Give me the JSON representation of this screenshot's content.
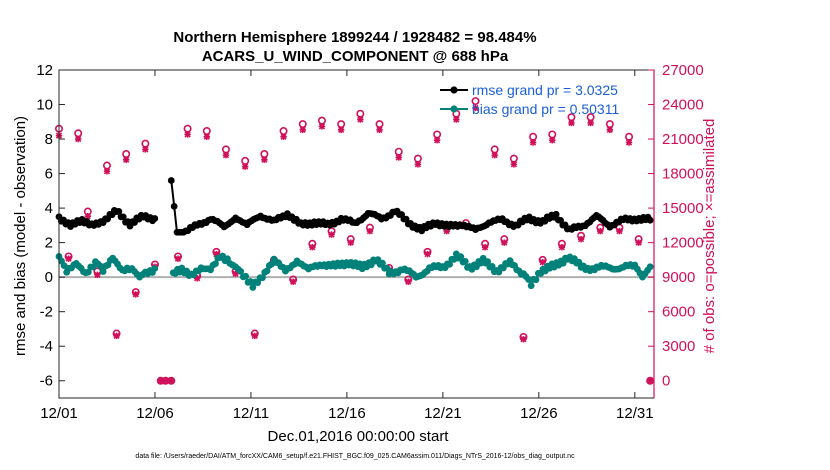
{
  "chart_data": {
    "type": "line",
    "title": "Northern Hemisphere 1899244 / 1928482 = 98.484%",
    "subtitle": "ACARS_U_WIND_COMPONENT @ 688 hPa",
    "xlabel": "Dec.01,2016 00:00:00 start",
    "ylabel_left": "rmse and bias (model - observation)",
    "ylabel_right": "# of obs: o=possible; ×=assimilated",
    "footer": "data file: /Users/raeder/DAI/ATM_forcXX/CAM6_setup/f.e21.FHIST_BGC.f09_025.CAM6assim.011/Diags_NTrS_2016-12/obs_diag_output.nc",
    "x_ticks": [
      "12/01",
      "12/06",
      "12/11",
      "12/16",
      "12/21",
      "12/26",
      "12/31"
    ],
    "x_tick_days": [
      1,
      6,
      11,
      16,
      21,
      26,
      31
    ],
    "xlim_days": [
      1,
      32
    ],
    "ylim_left": [
      -7,
      12
    ],
    "yticks_left": [
      "12",
      "10",
      "8",
      "6",
      "4",
      "2",
      "0",
      "-2",
      "-4",
      "-6"
    ],
    "ylim_right": [
      -1500,
      27000
    ],
    "yticks_right": [
      "27000",
      "24000",
      "21000",
      "18000",
      "15000",
      "12000",
      "9000",
      "6000",
      "3000",
      "0"
    ],
    "zero_line": 0,
    "legend": [
      "rmse grand pr = 3.0325",
      "bias grand pr = 0.50311"
    ],
    "colors": {
      "rmse": "#000000",
      "bias": "#00827a",
      "obs": "#d0105a",
      "zero": "#b0b0b0",
      "legend_text": "#1a5fd6"
    },
    "rmse_nodes": [
      {
        "d": 1.0,
        "v": 3.5
      },
      {
        "d": 1.6,
        "v": 3.0
      },
      {
        "d": 2.2,
        "v": 3.2
      },
      {
        "d": 2.7,
        "v": 3.0
      },
      {
        "d": 3.3,
        "v": 3.3
      },
      {
        "d": 4.0,
        "v": 3.8
      },
      {
        "d": 4.7,
        "v": 3.1
      },
      {
        "d": 5.4,
        "v": 3.5
      },
      {
        "d": 5.99,
        "v": 3.4
      },
      {
        "d": 6.7,
        "v": null
      },
      {
        "d": 6.85,
        "v": 5.6
      },
      {
        "d": 7.15,
        "v": 2.6
      },
      {
        "d": 7.6,
        "v": 2.6
      },
      {
        "d": 8.2,
        "v": 3.0
      },
      {
        "d": 8.9,
        "v": 3.4
      },
      {
        "d": 9.6,
        "v": 2.9
      },
      {
        "d": 10.2,
        "v": 3.5
      },
      {
        "d": 10.8,
        "v": 3.0
      },
      {
        "d": 11.5,
        "v": 3.6
      },
      {
        "d": 12.2,
        "v": 3.2
      },
      {
        "d": 12.9,
        "v": 3.7
      },
      {
        "d": 13.6,
        "v": 3.0
      },
      {
        "d": 14.3,
        "v": 3.2
      },
      {
        "d": 15.0,
        "v": 3.0
      },
      {
        "d": 15.7,
        "v": 3.4
      },
      {
        "d": 16.4,
        "v": 3.1
      },
      {
        "d": 17.1,
        "v": 3.7
      },
      {
        "d": 17.8,
        "v": 3.4
      },
      {
        "d": 18.5,
        "v": 3.8
      },
      {
        "d": 19.2,
        "v": 3.2
      },
      {
        "d": 19.9,
        "v": 2.7
      },
      {
        "d": 20.6,
        "v": 3.2
      },
      {
        "d": 21.3,
        "v": 2.9
      },
      {
        "d": 22.0,
        "v": 3.1
      },
      {
        "d": 22.7,
        "v": 2.7
      },
      {
        "d": 23.4,
        "v": 3.2
      },
      {
        "d": 24.1,
        "v": 3.3
      },
      {
        "d": 24.8,
        "v": 3.0
      },
      {
        "d": 25.5,
        "v": 3.4
      },
      {
        "d": 26.2,
        "v": 3.2
      },
      {
        "d": 26.9,
        "v": 3.6
      },
      {
        "d": 27.6,
        "v": 2.7
      },
      {
        "d": 28.3,
        "v": 3.0
      },
      {
        "d": 29.0,
        "v": 3.5
      },
      {
        "d": 29.7,
        "v": 3.0
      },
      {
        "d": 30.4,
        "v": 3.3
      },
      {
        "d": 31.1,
        "v": 3.4
      },
      {
        "d": 31.8,
        "v": 3.3
      }
    ],
    "bias_nodes": [
      {
        "d": 1.0,
        "v": 1.2
      },
      {
        "d": 1.4,
        "v": 0.4
      },
      {
        "d": 1.9,
        "v": 0.9
      },
      {
        "d": 2.4,
        "v": 0.3
      },
      {
        "d": 2.9,
        "v": 0.9
      },
      {
        "d": 3.3,
        "v": 0.5
      },
      {
        "d": 3.8,
        "v": 1.2
      },
      {
        "d": 4.3,
        "v": 0.4
      },
      {
        "d": 4.8,
        "v": 0.5
      },
      {
        "d": 5.2,
        "v": 0.0
      },
      {
        "d": 5.5,
        "v": 0.3
      },
      {
        "d": 5.99,
        "v": 0.5
      },
      {
        "d": 6.6,
        "v": null
      },
      {
        "d": 6.95,
        "v": 0.1
      },
      {
        "d": 7.4,
        "v": 0.5
      },
      {
        "d": 7.9,
        "v": 0.2
      },
      {
        "d": 8.4,
        "v": 0.6
      },
      {
        "d": 8.9,
        "v": 0.5
      },
      {
        "d": 9.4,
        "v": 1.2
      },
      {
        "d": 9.9,
        "v": 0.8
      },
      {
        "d": 10.2,
        "v": 0.6
      },
      {
        "d": 10.6,
        "v": 0.2
      },
      {
        "d": 11.1,
        "v": -0.4
      },
      {
        "d": 11.6,
        "v": 0.1
      },
      {
        "d": 12.2,
        "v": 0.9
      },
      {
        "d": 12.8,
        "v": 0.4
      },
      {
        "d": 13.4,
        "v": 1.0
      },
      {
        "d": 14.0,
        "v": 0.4
      },
      {
        "d": 14.7,
        "v": 0.8
      },
      {
        "d": 15.4,
        "v": 0.6
      },
      {
        "d": 16.1,
        "v": 0.9
      },
      {
        "d": 16.8,
        "v": 0.5
      },
      {
        "d": 17.5,
        "v": 1.1
      },
      {
        "d": 18.2,
        "v": 0.2
      },
      {
        "d": 18.9,
        "v": 0.5
      },
      {
        "d": 19.6,
        "v": 0.0
      },
      {
        "d": 20.3,
        "v": 0.5
      },
      {
        "d": 21.0,
        "v": 0.6
      },
      {
        "d": 21.7,
        "v": 1.2
      },
      {
        "d": 22.4,
        "v": 0.6
      },
      {
        "d": 23.1,
        "v": 0.9
      },
      {
        "d": 23.8,
        "v": 0.4
      },
      {
        "d": 24.5,
        "v": 0.8
      },
      {
        "d": 25.2,
        "v": 0.2
      },
      {
        "d": 25.6,
        "v": -0.3
      },
      {
        "d": 26.1,
        "v": 0.4
      },
      {
        "d": 26.8,
        "v": 0.6
      },
      {
        "d": 27.5,
        "v": 1.2
      },
      {
        "d": 28.2,
        "v": 0.6
      },
      {
        "d": 28.9,
        "v": 0.5
      },
      {
        "d": 29.6,
        "v": 0.6
      },
      {
        "d": 30.3,
        "v": 0.5
      },
      {
        "d": 31.0,
        "v": 0.7
      },
      {
        "d": 31.4,
        "v": 0.0
      },
      {
        "d": 31.8,
        "v": 0.6
      }
    ],
    "obs_possible": [
      {
        "d": 1.0,
        "v": 21900
      },
      {
        "d": 1.5,
        "v": 10800
      },
      {
        "d": 2.0,
        "v": 21500
      },
      {
        "d": 2.5,
        "v": 14700
      },
      {
        "d": 3.0,
        "v": 9500
      },
      {
        "d": 3.5,
        "v": 18700
      },
      {
        "d": 4.0,
        "v": 4100
      },
      {
        "d": 4.5,
        "v": 19700
      },
      {
        "d": 5.0,
        "v": 7700
      },
      {
        "d": 5.5,
        "v": 20600
      },
      {
        "d": 6.0,
        "v": 10100
      },
      {
        "d": 6.3,
        "v": 0
      },
      {
        "d": 6.55,
        "v": 0
      },
      {
        "d": 6.85,
        "v": 0
      },
      {
        "d": 7.2,
        "v": 10800
      },
      {
        "d": 7.7,
        "v": 21900
      },
      {
        "d": 8.2,
        "v": 9100
      },
      {
        "d": 8.7,
        "v": 21700
      },
      {
        "d": 9.2,
        "v": 11200
      },
      {
        "d": 9.7,
        "v": 20100
      },
      {
        "d": 10.2,
        "v": 9500
      },
      {
        "d": 10.7,
        "v": 19100
      },
      {
        "d": 11.2,
        "v": 4100
      },
      {
        "d": 11.7,
        "v": 19700
      },
      {
        "d": 12.2,
        "v": 10500
      },
      {
        "d": 12.7,
        "v": 21700
      },
      {
        "d": 13.2,
        "v": 8800
      },
      {
        "d": 13.7,
        "v": 22300
      },
      {
        "d": 14.2,
        "v": 11900
      },
      {
        "d": 14.7,
        "v": 22600
      },
      {
        "d": 15.2,
        "v": 13000
      },
      {
        "d": 15.7,
        "v": 22300
      },
      {
        "d": 16.2,
        "v": 12300
      },
      {
        "d": 16.7,
        "v": 23200
      },
      {
        "d": 17.2,
        "v": 13300
      },
      {
        "d": 17.7,
        "v": 22300
      },
      {
        "d": 18.2,
        "v": 9800
      },
      {
        "d": 18.7,
        "v": 19900
      },
      {
        "d": 19.2,
        "v": 8800
      },
      {
        "d": 19.7,
        "v": 19300
      },
      {
        "d": 20.2,
        "v": 11200
      },
      {
        "d": 20.7,
        "v": 21400
      },
      {
        "d": 21.2,
        "v": 13300
      },
      {
        "d": 21.7,
        "v": 23200
      },
      {
        "d": 22.2,
        "v": 13700
      },
      {
        "d": 22.7,
        "v": 24300
      },
      {
        "d": 23.2,
        "v": 11900
      },
      {
        "d": 23.7,
        "v": 20100
      },
      {
        "d": 24.2,
        "v": 12300
      },
      {
        "d": 24.7,
        "v": 19300
      },
      {
        "d": 25.2,
        "v": 3800
      },
      {
        "d": 25.7,
        "v": 21200
      },
      {
        "d": 26.2,
        "v": 10500
      },
      {
        "d": 26.7,
        "v": 21400
      },
      {
        "d": 27.2,
        "v": 11900
      },
      {
        "d": 27.7,
        "v": 22900
      },
      {
        "d": 28.2,
        "v": 12600
      },
      {
        "d": 28.7,
        "v": 22900
      },
      {
        "d": 29.2,
        "v": 13300
      },
      {
        "d": 29.7,
        "v": 22300
      },
      {
        "d": 30.2,
        "v": 13300
      },
      {
        "d": 30.7,
        "v": 21200
      },
      {
        "d": 31.2,
        "v": 12300
      },
      {
        "d": 31.8,
        "v": 0
      }
    ],
    "obs_assimilated": [
      {
        "d": 1.0,
        "v": 21300
      },
      {
        "d": 1.5,
        "v": 10600
      },
      {
        "d": 2.0,
        "v": 21000
      },
      {
        "d": 2.5,
        "v": 14300
      },
      {
        "d": 3.0,
        "v": 9200
      },
      {
        "d": 3.5,
        "v": 18200
      },
      {
        "d": 4.0,
        "v": 3900
      },
      {
        "d": 4.5,
        "v": 19200
      },
      {
        "d": 5.0,
        "v": 7500
      },
      {
        "d": 5.5,
        "v": 20100
      },
      {
        "d": 6.0,
        "v": 9900
      },
      {
        "d": 6.3,
        "v": 0
      },
      {
        "d": 6.55,
        "v": 0
      },
      {
        "d": 6.85,
        "v": 0
      },
      {
        "d": 7.2,
        "v": 10600
      },
      {
        "d": 7.7,
        "v": 21400
      },
      {
        "d": 8.2,
        "v": 8900
      },
      {
        "d": 8.7,
        "v": 21200
      },
      {
        "d": 9.2,
        "v": 11000
      },
      {
        "d": 9.7,
        "v": 19600
      },
      {
        "d": 10.2,
        "v": 9300
      },
      {
        "d": 10.7,
        "v": 18600
      },
      {
        "d": 11.2,
        "v": 3900
      },
      {
        "d": 11.7,
        "v": 19200
      },
      {
        "d": 12.2,
        "v": 10300
      },
      {
        "d": 12.7,
        "v": 21200
      },
      {
        "d": 13.2,
        "v": 8600
      },
      {
        "d": 13.7,
        "v": 21800
      },
      {
        "d": 14.2,
        "v": 11600
      },
      {
        "d": 14.7,
        "v": 22100
      },
      {
        "d": 15.2,
        "v": 12700
      },
      {
        "d": 15.7,
        "v": 21800
      },
      {
        "d": 16.2,
        "v": 12000
      },
      {
        "d": 16.7,
        "v": 22700
      },
      {
        "d": 17.2,
        "v": 13000
      },
      {
        "d": 17.7,
        "v": 21800
      },
      {
        "d": 18.2,
        "v": 9600
      },
      {
        "d": 18.7,
        "v": 19400
      },
      {
        "d": 19.2,
        "v": 8600
      },
      {
        "d": 19.7,
        "v": 18800
      },
      {
        "d": 20.2,
        "v": 11000
      },
      {
        "d": 20.7,
        "v": 20900
      },
      {
        "d": 21.2,
        "v": 13000
      },
      {
        "d": 21.7,
        "v": 22700
      },
      {
        "d": 22.2,
        "v": 13400
      },
      {
        "d": 22.7,
        "v": 23700
      },
      {
        "d": 23.2,
        "v": 11600
      },
      {
        "d": 23.7,
        "v": 19600
      },
      {
        "d": 24.2,
        "v": 12000
      },
      {
        "d": 24.7,
        "v": 18800
      },
      {
        "d": 25.2,
        "v": 3600
      },
      {
        "d": 25.7,
        "v": 20700
      },
      {
        "d": 26.2,
        "v": 10300
      },
      {
        "d": 26.7,
        "v": 20900
      },
      {
        "d": 27.2,
        "v": 11600
      },
      {
        "d": 27.7,
        "v": 22400
      },
      {
        "d": 28.2,
        "v": 12300
      },
      {
        "d": 28.7,
        "v": 22400
      },
      {
        "d": 29.2,
        "v": 13000
      },
      {
        "d": 29.7,
        "v": 21800
      },
      {
        "d": 30.2,
        "v": 13000
      },
      {
        "d": 30.7,
        "v": 20700
      },
      {
        "d": 31.2,
        "v": 12000
      },
      {
        "d": 31.8,
        "v": 0
      }
    ]
  }
}
